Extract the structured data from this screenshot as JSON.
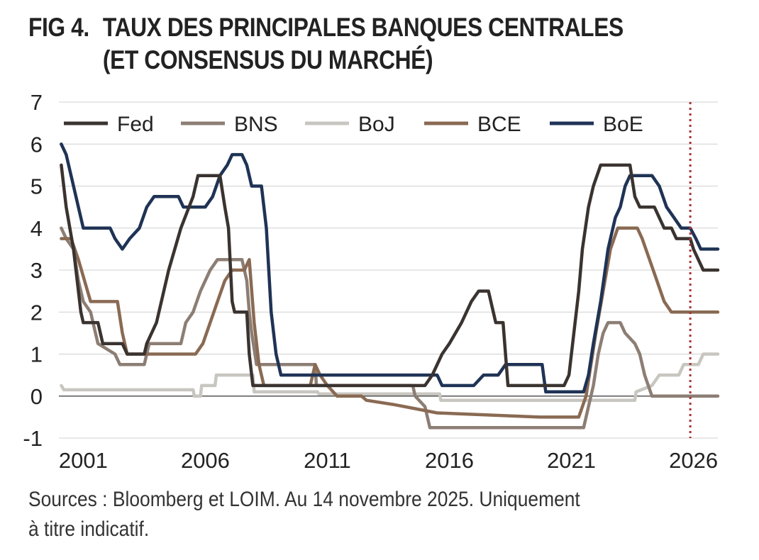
{
  "title": {
    "fig": "FIG 4.",
    "line1": "TAUX DES PRINCIPALES BANQUES CENTRALES",
    "line2": "(ET CONSENSUS DU MARCHÉ)"
  },
  "source": {
    "line1": "Sources : Bloomberg et LOIM. Au 14 novembre 2025. Uniquement",
    "line2": "à titre indicatif."
  },
  "chart_data": {
    "type": "line",
    "title": "TAUX DES PRINCIPALES BANQUES CENTRALES (ET CONSENSUS DU MARCHÉ)",
    "xlabel": "",
    "ylabel": "",
    "xlim": [
      2000,
      2027
    ],
    "ylim": [
      -1,
      7
    ],
    "yticks": [
      "-1",
      "0",
      "1",
      "2",
      "3",
      "4",
      "5",
      "6",
      "7"
    ],
    "xticks": [
      "2001",
      "2006",
      "2011",
      "2016",
      "2021",
      "2026"
    ],
    "grid": true,
    "legend": "top",
    "marker_line": {
      "x": 2025.87,
      "style": "dotted",
      "color": "#a83236"
    },
    "series": [
      {
        "name": "Fed",
        "color": "#3a3330",
        "points": [
          [
            2000.1,
            5.5
          ],
          [
            2000.3,
            4.5
          ],
          [
            2000.6,
            3.5
          ],
          [
            2000.9,
            2
          ],
          [
            2001.0,
            1.75
          ],
          [
            2001.6,
            1.75
          ],
          [
            2001.8,
            1.25
          ],
          [
            2002.6,
            1.25
          ],
          [
            2002.8,
            1.0
          ],
          [
            2003.5,
            1.0
          ],
          [
            2003.6,
            1.25
          ],
          [
            2004.0,
            1.75
          ],
          [
            2004.5,
            3.0
          ],
          [
            2005.0,
            4.0
          ],
          [
            2005.5,
            4.75
          ],
          [
            2005.7,
            5.25
          ],
          [
            2006.6,
            5.25
          ],
          [
            2006.8,
            4.5
          ],
          [
            2006.95,
            4.0
          ],
          [
            2007.1,
            2.25
          ],
          [
            2007.2,
            2.0
          ],
          [
            2007.7,
            2.0
          ],
          [
            2007.8,
            1.0
          ],
          [
            2007.95,
            0.25
          ],
          [
            2015.0,
            0.25
          ],
          [
            2015.3,
            0.5
          ],
          [
            2015.7,
            1.0
          ],
          [
            2016.0,
            1.25
          ],
          [
            2016.5,
            1.75
          ],
          [
            2016.9,
            2.25
          ],
          [
            2017.2,
            2.5
          ],
          [
            2017.6,
            2.5
          ],
          [
            2017.9,
            1.75
          ],
          [
            2018.2,
            1.75
          ],
          [
            2018.4,
            0.25
          ],
          [
            2020.7,
            0.25
          ],
          [
            2020.9,
            0.5
          ],
          [
            2021.1,
            1.5
          ],
          [
            2021.3,
            2.5
          ],
          [
            2021.45,
            3.5
          ],
          [
            2021.7,
            4.5
          ],
          [
            2021.9,
            5.0
          ],
          [
            2022.2,
            5.5
          ],
          [
            2023.4,
            5.5
          ],
          [
            2023.6,
            4.75
          ],
          [
            2023.8,
            4.5
          ],
          [
            2024.4,
            4.5
          ],
          [
            2024.6,
            4.25
          ],
          [
            2024.8,
            4.0
          ],
          [
            2025.1,
            4.0
          ],
          [
            2025.3,
            3.75
          ],
          [
            2025.87,
            3.75
          ],
          [
            2026.0,
            3.5
          ],
          [
            2026.2,
            3.25
          ],
          [
            2026.4,
            3.0
          ],
          [
            2027.0,
            3.0
          ]
        ]
      },
      {
        "name": "BNS",
        "color": "#8c7e74",
        "points": [
          [
            2000.1,
            4.0
          ],
          [
            2000.3,
            3.75
          ],
          [
            2000.6,
            3.5
          ],
          [
            2000.8,
            2.75
          ],
          [
            2001.0,
            2.25
          ],
          [
            2001.3,
            2.0
          ],
          [
            2001.5,
            1.5
          ],
          [
            2001.6,
            1.25
          ],
          [
            2002.3,
            1.0
          ],
          [
            2002.5,
            0.75
          ],
          [
            2003.5,
            0.75
          ],
          [
            2003.7,
            1.25
          ],
          [
            2005.0,
            1.25
          ],
          [
            2005.2,
            1.75
          ],
          [
            2005.5,
            2.0
          ],
          [
            2005.8,
            2.5
          ],
          [
            2006.2,
            3.0
          ],
          [
            2006.5,
            3.25
          ],
          [
            2007.5,
            3.25
          ],
          [
            2007.7,
            2.75
          ],
          [
            2007.8,
            2.0
          ],
          [
            2007.9,
            1.5
          ],
          [
            2008.1,
            0.75
          ],
          [
            2010.5,
            0.75
          ],
          [
            2010.55,
            0.25
          ],
          [
            2014.5,
            0.25
          ],
          [
            2014.6,
            0.0
          ],
          [
            2015.0,
            -0.25
          ],
          [
            2015.2,
            -0.75
          ],
          [
            2021.5,
            -0.75
          ],
          [
            2021.7,
            -0.25
          ],
          [
            2021.9,
            0.25
          ],
          [
            2022.1,
            1.0
          ],
          [
            2022.3,
            1.5
          ],
          [
            2022.5,
            1.75
          ],
          [
            2023.0,
            1.75
          ],
          [
            2023.2,
            1.5
          ],
          [
            2023.6,
            1.25
          ],
          [
            2023.8,
            1.0
          ],
          [
            2024.0,
            0.5
          ],
          [
            2024.3,
            0.0
          ],
          [
            2027.0,
            0.0
          ]
        ]
      },
      {
        "name": "BoJ",
        "color": "#c8c6c0",
        "points": [
          [
            2000.1,
            0.25
          ],
          [
            2000.2,
            0.15
          ],
          [
            2005.5,
            0.15
          ],
          [
            2005.55,
            0.0
          ],
          [
            2005.8,
            0.0
          ],
          [
            2005.85,
            0.25
          ],
          [
            2006.4,
            0.25
          ],
          [
            2006.45,
            0.5
          ],
          [
            2007.95,
            0.5
          ],
          [
            2008.0,
            0.1
          ],
          [
            2010.6,
            0.1
          ],
          [
            2010.65,
            0.05
          ],
          [
            2015.6,
            0.05
          ],
          [
            2015.65,
            -0.1
          ],
          [
            2023.6,
            -0.1
          ],
          [
            2023.65,
            0.1
          ],
          [
            2024.3,
            0.25
          ],
          [
            2024.6,
            0.5
          ],
          [
            2025.4,
            0.5
          ],
          [
            2025.6,
            0.75
          ],
          [
            2026.2,
            0.75
          ],
          [
            2026.4,
            1.0
          ],
          [
            2027.0,
            1.0
          ]
        ]
      },
      {
        "name": "BCE",
        "color": "#8a6a53",
        "points": [
          [
            2000.1,
            3.75
          ],
          [
            2000.5,
            3.75
          ],
          [
            2000.8,
            3.25
          ],
          [
            2001.3,
            2.25
          ],
          [
            2002.4,
            2.25
          ],
          [
            2002.6,
            1.5
          ],
          [
            2002.8,
            1.0
          ],
          [
            2005.6,
            1.0
          ],
          [
            2005.9,
            1.25
          ],
          [
            2006.2,
            1.75
          ],
          [
            2006.5,
            2.25
          ],
          [
            2006.8,
            2.75
          ],
          [
            2007.1,
            3.0
          ],
          [
            2007.6,
            3.0
          ],
          [
            2007.8,
            3.25
          ],
          [
            2008.0,
            1.75
          ],
          [
            2008.2,
            0.75
          ],
          [
            2008.4,
            0.25
          ],
          [
            2010.3,
            0.25
          ],
          [
            2010.5,
            0.75
          ],
          [
            2010.7,
            0.5
          ],
          [
            2011.0,
            0.25
          ],
          [
            2011.4,
            0.0
          ],
          [
            2012.4,
            0.0
          ],
          [
            2012.6,
            -0.1
          ],
          [
            2013.7,
            -0.2
          ],
          [
            2014.6,
            -0.3
          ],
          [
            2015.5,
            -0.4
          ],
          [
            2019.7,
            -0.5
          ],
          [
            2021.3,
            -0.5
          ],
          [
            2021.6,
            0.0
          ],
          [
            2021.8,
            0.75
          ],
          [
            2022.0,
            1.5
          ],
          [
            2022.3,
            2.5
          ],
          [
            2022.6,
            3.5
          ],
          [
            2022.9,
            4.0
          ],
          [
            2023.7,
            4.0
          ],
          [
            2023.9,
            3.75
          ],
          [
            2024.2,
            3.25
          ],
          [
            2024.5,
            2.75
          ],
          [
            2024.8,
            2.25
          ],
          [
            2025.1,
            2.0
          ],
          [
            2027.0,
            2.0
          ]
        ]
      },
      {
        "name": "BoE",
        "color": "#1f3355",
        "points": [
          [
            2000.1,
            6.0
          ],
          [
            2000.3,
            5.75
          ],
          [
            2000.5,
            5.25
          ],
          [
            2000.8,
            4.5
          ],
          [
            2001.0,
            4.0
          ],
          [
            2002.1,
            4.0
          ],
          [
            2002.3,
            3.75
          ],
          [
            2002.6,
            3.5
          ],
          [
            2002.9,
            3.75
          ],
          [
            2003.3,
            4.0
          ],
          [
            2003.6,
            4.5
          ],
          [
            2003.9,
            4.75
          ],
          [
            2004.9,
            4.75
          ],
          [
            2005.1,
            4.5
          ],
          [
            2006.0,
            4.5
          ],
          [
            2006.3,
            4.75
          ],
          [
            2006.6,
            5.25
          ],
          [
            2006.9,
            5.5
          ],
          [
            2007.1,
            5.75
          ],
          [
            2007.5,
            5.75
          ],
          [
            2007.7,
            5.5
          ],
          [
            2007.9,
            5.0
          ],
          [
            2008.3,
            5.0
          ],
          [
            2008.5,
            4.0
          ],
          [
            2008.7,
            2.0
          ],
          [
            2008.9,
            1.0
          ],
          [
            2009.1,
            0.5
          ],
          [
            2015.5,
            0.5
          ],
          [
            2015.7,
            0.25
          ],
          [
            2017.0,
            0.25
          ],
          [
            2017.4,
            0.5
          ],
          [
            2018.0,
            0.5
          ],
          [
            2018.3,
            0.75
          ],
          [
            2019.8,
            0.75
          ],
          [
            2019.95,
            0.1
          ],
          [
            2021.5,
            0.1
          ],
          [
            2021.7,
            0.5
          ],
          [
            2021.9,
            1.25
          ],
          [
            2022.2,
            2.25
          ],
          [
            2022.5,
            3.5
          ],
          [
            2022.8,
            4.25
          ],
          [
            2023.0,
            4.5
          ],
          [
            2023.2,
            5.0
          ],
          [
            2023.4,
            5.25
          ],
          [
            2024.3,
            5.25
          ],
          [
            2024.6,
            5.0
          ],
          [
            2024.9,
            4.5
          ],
          [
            2025.2,
            4.25
          ],
          [
            2025.5,
            4.0
          ],
          [
            2025.87,
            4.0
          ],
          [
            2026.1,
            3.75
          ],
          [
            2026.3,
            3.5
          ],
          [
            2027.0,
            3.5
          ]
        ]
      }
    ]
  }
}
